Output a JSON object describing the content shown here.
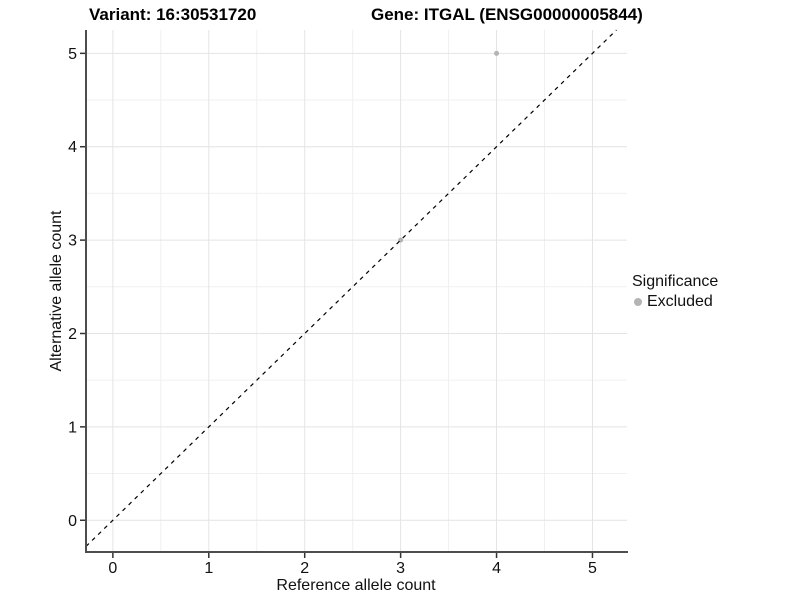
{
  "chart_data": {
    "type": "scatter",
    "title_variant": "Variant: 16:30531720",
    "title_gene": "Gene: ITGAL (ENSG00000005844)",
    "xlabel": "Reference allele count",
    "ylabel": "Alternative allele count",
    "x_ticks": [
      0,
      1,
      2,
      3,
      4,
      5
    ],
    "y_ticks": [
      0,
      1,
      2,
      3,
      4,
      5
    ],
    "x_minor": [
      0.5,
      1.5,
      2.5,
      3.5,
      4.5
    ],
    "y_minor": [
      0.5,
      1.5,
      2.5,
      3.5,
      4.5
    ],
    "xlim": [
      -0.28,
      5.36
    ],
    "ylim": [
      -0.34,
      5.25
    ],
    "grid": true,
    "points": [
      {
        "x": 3,
        "y": 3,
        "significance": "Excluded"
      },
      {
        "x": 4,
        "y": 5,
        "significance": "Excluded"
      }
    ],
    "identity_line": {
      "slope": 1,
      "intercept": 0,
      "style": "dashed"
    },
    "legend": {
      "title": "Significance",
      "position": "right",
      "items": [
        {
          "label": "Excluded",
          "color": "#b4b4b4"
        }
      ]
    },
    "colors": {
      "point": "#b4b4b4",
      "grid_major": "#e4e4e4",
      "grid_minor": "#f0f0f0",
      "axis_line": "#4d4d4d",
      "tick_mark": "#333333",
      "tick_label": "#111111",
      "dashed_line": "#000000",
      "background": "#ffffff"
    }
  }
}
